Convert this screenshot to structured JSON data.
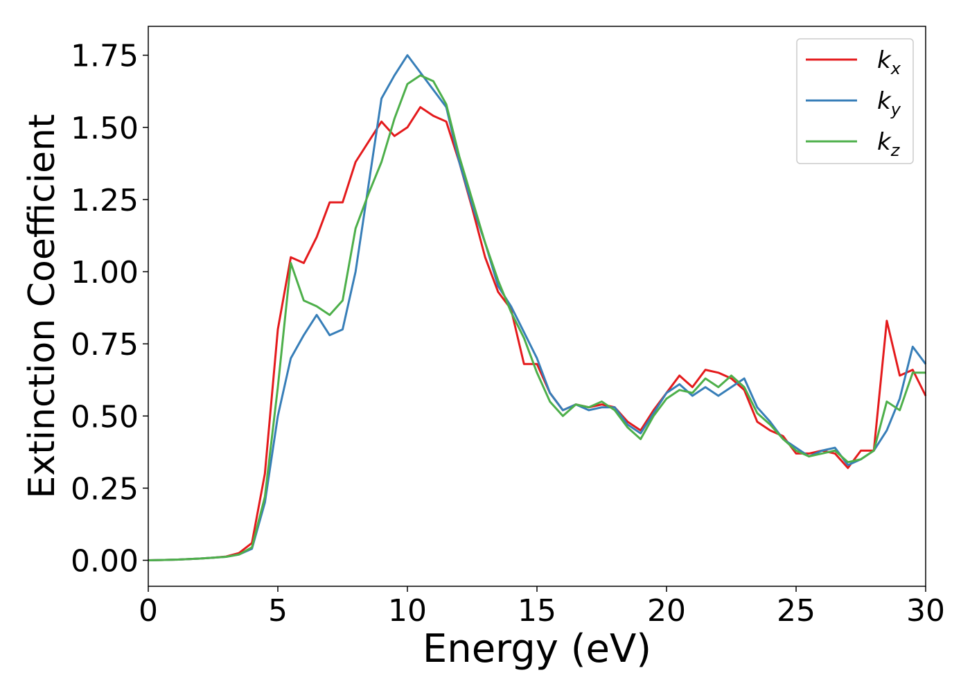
{
  "chart_data": {
    "type": "line",
    "xlabel": "Energy (eV)",
    "ylabel": "Extinction Coefficient",
    "x": [
      0,
      0.5,
      1,
      1.5,
      2,
      2.5,
      3,
      3.5,
      4,
      4.5,
      5,
      5.5,
      6,
      6.5,
      7,
      7.5,
      8,
      8.5,
      9,
      9.5,
      10,
      10.5,
      11,
      11.5,
      12,
      12.5,
      13,
      13.5,
      14,
      14.5,
      15,
      15.5,
      16,
      16.5,
      17,
      17.5,
      18,
      18.5,
      19,
      19.5,
      20,
      20.5,
      21,
      21.5,
      22,
      22.5,
      23,
      23.5,
      24,
      24.5,
      25,
      25.5,
      26,
      26.5,
      27,
      27.5,
      28,
      28.5,
      29,
      29.5,
      30
    ],
    "series": [
      {
        "name": "k_x",
        "color": "#e41a1c",
        "values": [
          0,
          0.001,
          0.002,
          0.004,
          0.006,
          0.009,
          0.013,
          0.025,
          0.06,
          0.3,
          0.8,
          1.05,
          1.03,
          1.12,
          1.24,
          1.24,
          1.38,
          1.45,
          1.52,
          1.47,
          1.5,
          1.57,
          1.54,
          1.52,
          1.38,
          1.22,
          1.05,
          0.93,
          0.87,
          0.68,
          0.68,
          0.58,
          0.52,
          0.54,
          0.53,
          0.54,
          0.53,
          0.48,
          0.45,
          0.52,
          0.58,
          0.64,
          0.6,
          0.66,
          0.65,
          0.63,
          0.59,
          0.48,
          0.45,
          0.43,
          0.37,
          0.37,
          0.38,
          0.37,
          0.32,
          0.38,
          0.38,
          0.83,
          0.64,
          0.66,
          0.57
        ]
      },
      {
        "name": "k_y",
        "color": "#377eb8",
        "values": [
          0,
          0.001,
          0.002,
          0.004,
          0.006,
          0.009,
          0.012,
          0.02,
          0.04,
          0.2,
          0.5,
          0.7,
          0.78,
          0.85,
          0.78,
          0.8,
          1.0,
          1.3,
          1.6,
          1.68,
          1.75,
          1.69,
          1.63,
          1.57,
          1.38,
          1.23,
          1.1,
          0.95,
          0.88,
          0.79,
          0.7,
          0.58,
          0.52,
          0.54,
          0.52,
          0.53,
          0.53,
          0.47,
          0.44,
          0.51,
          0.58,
          0.61,
          0.57,
          0.6,
          0.57,
          0.6,
          0.63,
          0.53,
          0.48,
          0.42,
          0.39,
          0.36,
          0.38,
          0.39,
          0.33,
          0.35,
          0.38,
          0.45,
          0.56,
          0.74,
          0.68
        ]
      },
      {
        "name": "k_z",
        "color": "#4daf4a",
        "values": [
          0,
          0.001,
          0.002,
          0.004,
          0.006,
          0.009,
          0.012,
          0.02,
          0.045,
          0.22,
          0.6,
          1.03,
          0.9,
          0.88,
          0.85,
          0.9,
          1.15,
          1.27,
          1.38,
          1.53,
          1.65,
          1.68,
          1.66,
          1.58,
          1.4,
          1.25,
          1.1,
          0.97,
          0.86,
          0.77,
          0.65,
          0.55,
          0.5,
          0.54,
          0.53,
          0.55,
          0.52,
          0.46,
          0.42,
          0.5,
          0.56,
          0.59,
          0.58,
          0.63,
          0.6,
          0.64,
          0.6,
          0.51,
          0.47,
          0.42,
          0.38,
          0.36,
          0.37,
          0.38,
          0.34,
          0.35,
          0.38,
          0.55,
          0.52,
          0.65,
          0.65
        ]
      }
    ],
    "xlim": [
      0,
      30
    ],
    "xticks": [
      0,
      5,
      10,
      15,
      20,
      25,
      30
    ],
    "ylim": [
      -0.09,
      1.85
    ],
    "yticks": [
      {
        "value": 0,
        "label": "0.00"
      },
      {
        "value": 0.25,
        "label": "0.25"
      },
      {
        "value": 0.5,
        "label": "0.50"
      },
      {
        "value": 0.75,
        "label": "0.75"
      },
      {
        "value": 1,
        "label": "1.00"
      },
      {
        "value": 1.25,
        "label": "1.25"
      },
      {
        "value": 1.5,
        "label": "1.50"
      },
      {
        "value": 1.75,
        "label": "1.75"
      }
    ],
    "legend": "upper right",
    "grid": false
  }
}
